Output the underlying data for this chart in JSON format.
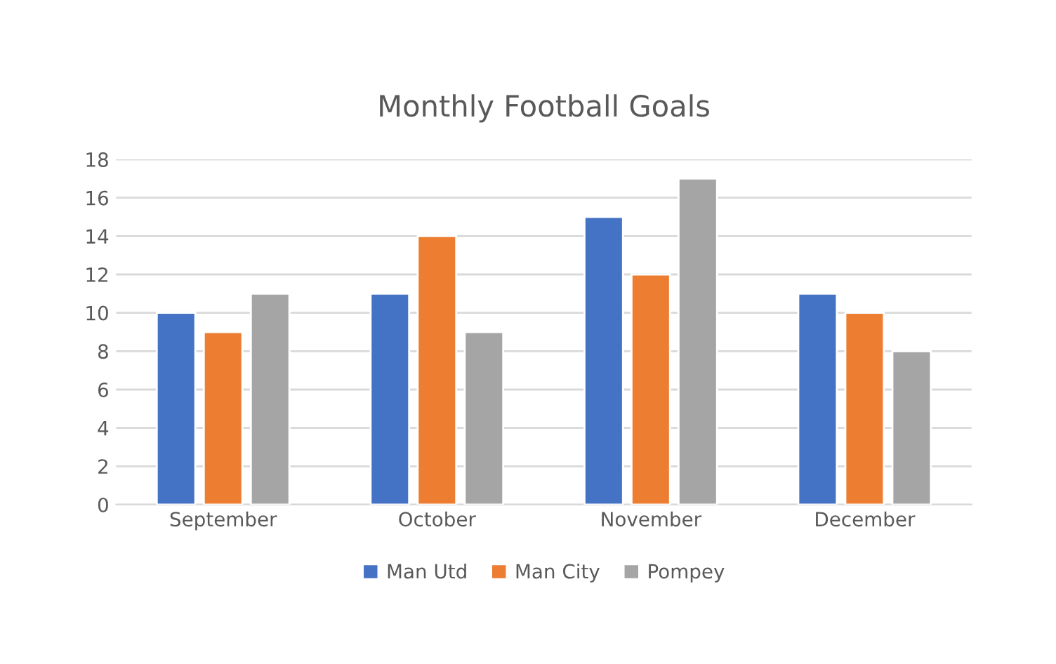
{
  "chart_data": {
    "type": "bar",
    "title": "Monthly Football Goals",
    "categories": [
      "September",
      "October",
      "November",
      "December"
    ],
    "series": [
      {
        "name": "Man Utd",
        "color": "#4472c4",
        "values": [
          10,
          11,
          15,
          11
        ]
      },
      {
        "name": "Man City",
        "color": "#ed7d31",
        "values": [
          9,
          14,
          12,
          10
        ]
      },
      {
        "name": "Pompey",
        "color": "#a5a5a5",
        "values": [
          11,
          9,
          17,
          8
        ]
      }
    ],
    "ylim": [
      0,
      18
    ],
    "yticks": [
      0,
      2,
      4,
      6,
      8,
      10,
      12,
      14,
      16,
      18
    ],
    "grid": "y",
    "legend": "bottom"
  }
}
